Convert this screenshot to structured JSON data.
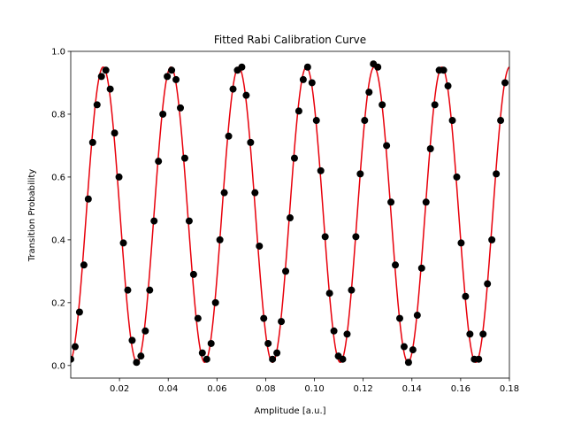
{
  "chart_data": {
    "type": "scatter",
    "title": "Fitted Rabi Calibration Curve",
    "xlabel": "Amplitude [a.u.]",
    "ylabel": "Transition Probability",
    "xlim": [
      0.0,
      0.18
    ],
    "ylim": [
      -0.04,
      1.0
    ],
    "xticks": [
      0.02,
      0.04,
      0.06,
      0.08,
      0.1,
      0.12,
      0.14,
      0.16,
      0.18
    ],
    "xtick_labels": [
      "0.02",
      "0.04",
      "0.06",
      "0.08",
      "0.10",
      "0.12",
      "0.14",
      "0.16",
      "0.18"
    ],
    "yticks": [
      0.0,
      0.2,
      0.4,
      0.6,
      0.8,
      1.0
    ],
    "ytick_labels": [
      "0.0",
      "0.2",
      "0.4",
      "0.6",
      "0.8",
      "1.0"
    ],
    "grid": false,
    "legend": "none",
    "series": [
      {
        "kind": "scatter",
        "color": "#000000",
        "points": [
          [
            0.0,
            0.02
          ],
          [
            0.0018,
            0.06
          ],
          [
            0.0036,
            0.17
          ],
          [
            0.0054,
            0.32
          ],
          [
            0.0072,
            0.53
          ],
          [
            0.009,
            0.71
          ],
          [
            0.0108,
            0.83
          ],
          [
            0.0126,
            0.92
          ],
          [
            0.0144,
            0.94
          ],
          [
            0.0162,
            0.88
          ],
          [
            0.018,
            0.74
          ],
          [
            0.0198,
            0.6
          ],
          [
            0.0216,
            0.39
          ],
          [
            0.0234,
            0.24
          ],
          [
            0.0252,
            0.08
          ],
          [
            0.027,
            0.01
          ],
          [
            0.0288,
            0.03
          ],
          [
            0.0306,
            0.11
          ],
          [
            0.0324,
            0.24
          ],
          [
            0.0342,
            0.46
          ],
          [
            0.036,
            0.65
          ],
          [
            0.0378,
            0.8
          ],
          [
            0.0396,
            0.92
          ],
          [
            0.0414,
            0.94
          ],
          [
            0.0432,
            0.91
          ],
          [
            0.045,
            0.82
          ],
          [
            0.0468,
            0.66
          ],
          [
            0.0486,
            0.46
          ],
          [
            0.0504,
            0.29
          ],
          [
            0.0522,
            0.15
          ],
          [
            0.054,
            0.04
          ],
          [
            0.0558,
            0.02
          ],
          [
            0.0576,
            0.07
          ],
          [
            0.0594,
            0.2
          ],
          [
            0.0612,
            0.4
          ],
          [
            0.063,
            0.55
          ],
          [
            0.0648,
            0.73
          ],
          [
            0.0666,
            0.88
          ],
          [
            0.0684,
            0.94
          ],
          [
            0.0702,
            0.95
          ],
          [
            0.072,
            0.86
          ],
          [
            0.0738,
            0.71
          ],
          [
            0.0756,
            0.55
          ],
          [
            0.0774,
            0.38
          ],
          [
            0.0792,
            0.15
          ],
          [
            0.081,
            0.07
          ],
          [
            0.0828,
            0.02
          ],
          [
            0.0846,
            0.04
          ],
          [
            0.0864,
            0.14
          ],
          [
            0.0882,
            0.3
          ],
          [
            0.09,
            0.47
          ],
          [
            0.0918,
            0.66
          ],
          [
            0.0936,
            0.81
          ],
          [
            0.0954,
            0.91
          ],
          [
            0.0972,
            0.95
          ],
          [
            0.099,
            0.9
          ],
          [
            0.1008,
            0.78
          ],
          [
            0.1026,
            0.62
          ],
          [
            0.1044,
            0.41
          ],
          [
            0.1062,
            0.23
          ],
          [
            0.108,
            0.11
          ],
          [
            0.1098,
            0.03
          ],
          [
            0.1116,
            0.02
          ],
          [
            0.1134,
            0.1
          ],
          [
            0.1152,
            0.24
          ],
          [
            0.117,
            0.41
          ],
          [
            0.1188,
            0.61
          ],
          [
            0.1206,
            0.78
          ],
          [
            0.1224,
            0.87
          ],
          [
            0.1242,
            0.96
          ],
          [
            0.126,
            0.95
          ],
          [
            0.1278,
            0.83
          ],
          [
            0.1296,
            0.7
          ],
          [
            0.1314,
            0.52
          ],
          [
            0.1332,
            0.32
          ],
          [
            0.135,
            0.15
          ],
          [
            0.1368,
            0.06
          ],
          [
            0.1386,
            0.01
          ],
          [
            0.1404,
            0.05
          ],
          [
            0.1422,
            0.16
          ],
          [
            0.144,
            0.31
          ],
          [
            0.1458,
            0.52
          ],
          [
            0.1476,
            0.69
          ],
          [
            0.1494,
            0.83
          ],
          [
            0.1512,
            0.94
          ],
          [
            0.153,
            0.94
          ],
          [
            0.1548,
            0.89
          ],
          [
            0.1566,
            0.78
          ],
          [
            0.1584,
            0.6
          ],
          [
            0.1602,
            0.39
          ],
          [
            0.162,
            0.22
          ],
          [
            0.1638,
            0.1
          ],
          [
            0.1656,
            0.02
          ],
          [
            0.1674,
            0.02
          ],
          [
            0.1692,
            0.1
          ],
          [
            0.171,
            0.26
          ],
          [
            0.1728,
            0.4
          ],
          [
            0.1746,
            0.61
          ],
          [
            0.1764,
            0.78
          ],
          [
            0.1782,
            0.9
          ]
        ]
      },
      {
        "kind": "line",
        "color": "#e8000b",
        "model": "sin2",
        "amplitude": 0.94,
        "offset": 0.01,
        "period": 0.0278,
        "phase": -0.0006
      }
    ]
  }
}
